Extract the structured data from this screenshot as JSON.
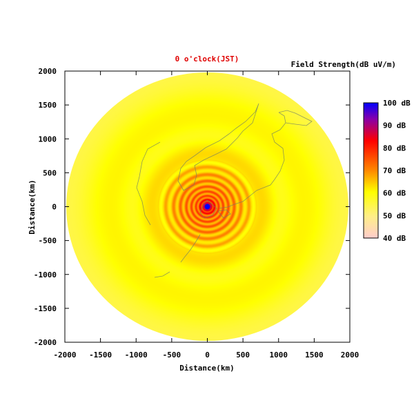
{
  "chart_data": {
    "type": "heatmap",
    "title": "0 o'clock(JST)",
    "xlabel": "Distance(km)",
    "ylabel": "Distance(km)",
    "xlim": [
      -2000,
      2000
    ],
    "ylim": [
      -2000,
      2000
    ],
    "x_ticks": [
      "-2000",
      "-1500",
      "-1000",
      "-500",
      "0",
      "500",
      "1000",
      "1500",
      "2000"
    ],
    "y_ticks": [
      "2000",
      "1500",
      "1000",
      "500",
      "0",
      "-500",
      "-1000",
      "-1500",
      "-2000"
    ],
    "x_tick_values": [
      -2000,
      -1500,
      -1000,
      -500,
      0,
      500,
      1000,
      1500,
      2000
    ],
    "y_tick_values": [
      2000,
      1500,
      1000,
      500,
      0,
      -500,
      -1000,
      -1500,
      -2000
    ],
    "grid": false,
    "colorbar": {
      "title": "Field Strength(dB uV/m)",
      "placement": "right",
      "range": [
        40,
        100
      ],
      "labels": [
        "100 dB",
        "90 dB",
        "80 dB",
        "70 dB",
        "60 dB",
        "50 dB",
        "40 dB"
      ],
      "label_values": [
        100,
        90,
        80,
        70,
        60,
        50,
        40
      ],
      "colors": [
        "#0000ff",
        "#cc0000",
        "#ff0000",
        "#ff8800",
        "#ffff00",
        "#ffee66",
        "#ffcccc"
      ]
    },
    "field": {
      "coverage_radius_km": 1980,
      "description_units": "dB",
      "center_value": 100,
      "ring_profile": [
        {
          "r": 0,
          "v": 100
        },
        {
          "r": 40,
          "v": 82
        },
        {
          "r": 150,
          "v": 72
        },
        {
          "r": 400,
          "v": 68
        },
        {
          "r": 650,
          "v": 62
        },
        {
          "r": 1000,
          "v": 59
        },
        {
          "r": 1400,
          "v": 57
        },
        {
          "r": 1980,
          "v": 56
        }
      ]
    }
  }
}
